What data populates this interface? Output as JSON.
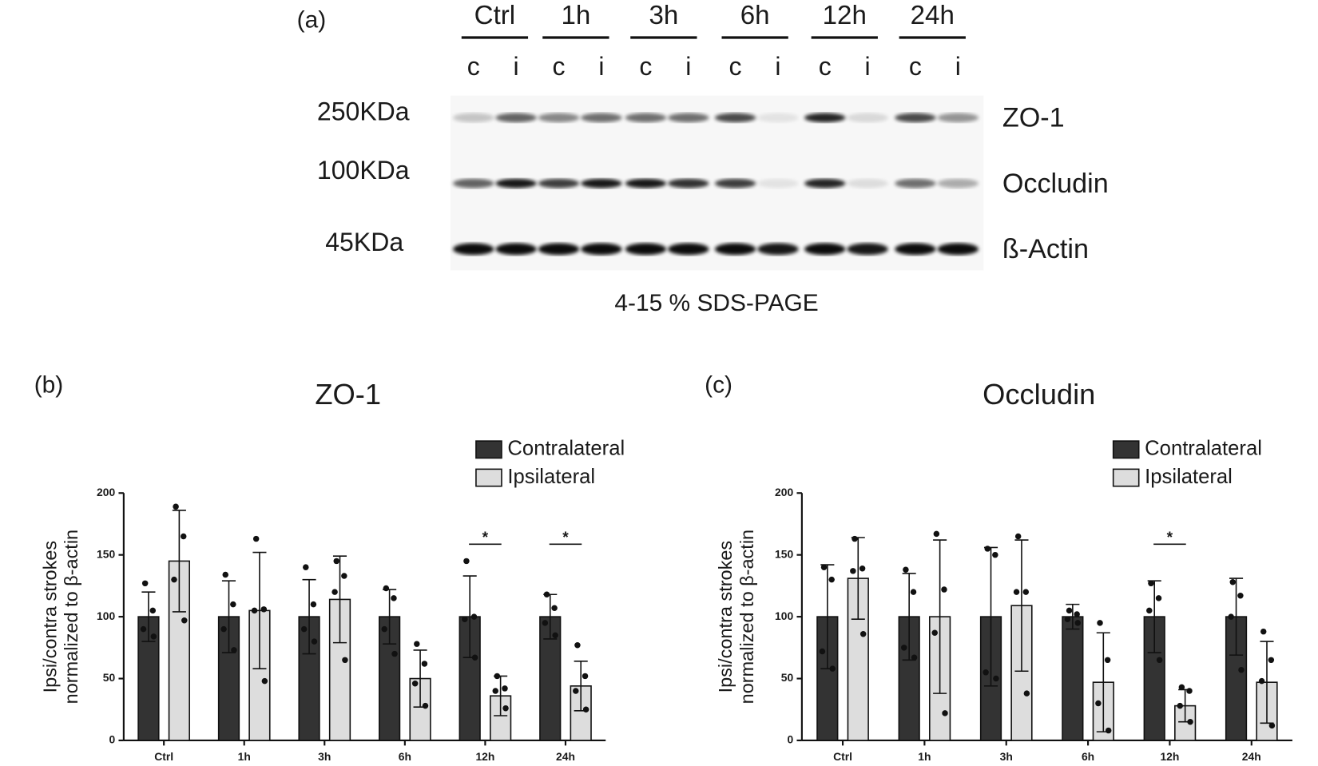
{
  "blot": {
    "panel_label": "(a)",
    "groups": [
      "Ctrl",
      "1h",
      "3h",
      "6h",
      "12h",
      "24h"
    ],
    "lanes": [
      "c",
      "i",
      "c",
      "i",
      "c",
      "i",
      "c",
      "i",
      "c",
      "i",
      "c",
      "i"
    ],
    "markers": [
      "250KDa",
      "100KDa",
      "45KDa"
    ],
    "proteins": [
      "ZO-1",
      "Occludin",
      "ß-Actin"
    ],
    "caption": "4-15 % SDS-PAGE"
  },
  "chart_data": [
    {
      "type": "bar",
      "panel_label": "(b)",
      "title": "ZO-1",
      "ylabel": [
        "Ipsi/contra strokes",
        "normalized to β-actin"
      ],
      "categories": [
        "Ctrl",
        "1h",
        "3h",
        "6h",
        "12h",
        "24h"
      ],
      "ylim": [
        0,
        200
      ],
      "yticks": [
        0,
        50,
        100,
        150,
        200
      ],
      "legend": "top-right",
      "series": [
        {
          "name": "Contralateral",
          "color": "#333333",
          "values": [
            100,
            100,
            100,
            100,
            100,
            100
          ],
          "errors": [
            20,
            29,
            30,
            22,
            33,
            18
          ],
          "points": [
            [
              127,
              105,
              90,
              84
            ],
            [
              134,
              110,
              90,
              73
            ],
            [
              140,
              110,
              90,
              80
            ],
            [
              123,
              115,
              90,
              70
            ],
            [
              145,
              100,
              98,
              67
            ],
            [
              118,
              107,
              95,
              85
            ]
          ]
        },
        {
          "name": "Ipsilateral",
          "color": "#dddddd",
          "values": [
            145,
            105,
            114,
            50,
            36,
            44
          ],
          "errors": [
            41,
            47,
            35,
            23,
            16,
            20
          ],
          "points": [
            [
              189,
              165,
              130,
              97
            ],
            [
              163,
              106,
              105,
              48
            ],
            [
              145,
              133,
              120,
              65
            ],
            [
              78,
              62,
              46,
              28
            ],
            [
              52,
              42,
              40,
              26
            ],
            [
              77,
              52,
              40,
              25
            ]
          ]
        }
      ],
      "significance": [
        null,
        null,
        null,
        null,
        "*",
        "*"
      ]
    },
    {
      "type": "bar",
      "panel_label": "(c)",
      "title": "Occludin",
      "ylabel": [
        "Ipsi/contra strokes",
        "normalized to β-actin"
      ],
      "categories": [
        "Ctrl",
        "1h",
        "3h",
        "6h",
        "12h",
        "24h"
      ],
      "ylim": [
        0,
        200
      ],
      "yticks": [
        0,
        50,
        100,
        150,
        200
      ],
      "legend": "top-right",
      "series": [
        {
          "name": "Contralateral",
          "color": "#333333",
          "values": [
            100,
            100,
            100,
            100,
            100,
            100
          ],
          "errors": [
            42,
            35,
            56,
            10,
            29,
            31
          ],
          "points": [
            [
              140,
              130,
              72,
              58
            ],
            [
              138,
              120,
              75,
              67
            ],
            [
              155,
              150,
              55,
              50
            ],
            [
              105,
              102,
              98,
              95
            ],
            [
              127,
              115,
              105,
              65
            ],
            [
              128,
              117,
              100,
              57
            ]
          ]
        },
        {
          "name": "Ipsilateral",
          "color": "#dddddd",
          "values": [
            131,
            100,
            109,
            47,
            28,
            47
          ],
          "errors": [
            33,
            62,
            53,
            40,
            13,
            33
          ],
          "points": [
            [
              163,
              139,
              137,
              86
            ],
            [
              167,
              122,
              87,
              22
            ],
            [
              165,
              120,
              120,
              38
            ],
            [
              95,
              65,
              30,
              8
            ],
            [
              43,
              40,
              28,
              15
            ],
            [
              88,
              65,
              48,
              12
            ]
          ]
        }
      ],
      "significance": [
        null,
        null,
        null,
        null,
        "*",
        null
      ]
    }
  ]
}
